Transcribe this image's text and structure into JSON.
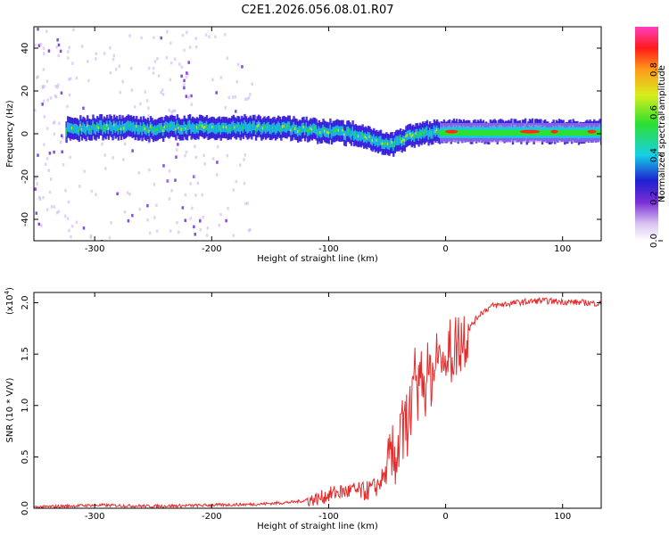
{
  "title": "C2E1.2026.056.08.01.R07",
  "colors": {
    "snr_line": "#e62a2a",
    "ridge": "#19c8d2",
    "haze": "#a678e6",
    "background": "#ffffff"
  },
  "chart_data": [
    {
      "type": "heatmap",
      "xlabel": "Height of straight line (km)",
      "ylabel": "Frequency (Hz)",
      "xlim": [
        -352,
        133
      ],
      "ylim": [
        -50,
        50
      ],
      "x_ticks": [
        -300,
        -200,
        -100,
        0,
        100
      ],
      "x_tick_labels": [
        "-300",
        "-200",
        "-100",
        "0",
        "100"
      ],
      "y_ticks": [
        -40,
        -20,
        0,
        20,
        40
      ],
      "y_tick_labels": [
        "-40",
        "-20",
        "0",
        "20",
        "40"
      ],
      "ridge_center": {
        "x": [
          -325,
          -300,
          -270,
          -250,
          -230,
          -200,
          -175,
          -150,
          -125,
          -100,
          -80,
          -65,
          -55,
          -45,
          -35,
          -20,
          0,
          20,
          60,
          100,
          133
        ],
        "y": [
          2,
          3,
          3,
          2,
          3,
          3,
          3,
          3,
          2,
          1,
          0,
          -2,
          -4,
          -5,
          -2,
          0,
          1,
          1,
          1,
          1,
          1
        ]
      },
      "haze_bands": [
        {
          "x": [
            -352,
            -320
          ],
          "intensity": 0.9
        },
        {
          "x": [
            -320,
            -240
          ],
          "intensity": 0.35
        },
        {
          "x": [
            -240,
            -215
          ],
          "intensity": 0.9
        },
        {
          "x": [
            -215,
            -165
          ],
          "intensity": 0.45
        }
      ],
      "colorbar": {
        "label": "Normalized spectral amplitude",
        "range": [
          0,
          1
        ],
        "ticks": [
          0.0,
          0.2,
          0.4,
          0.6,
          0.8
        ],
        "tick_labels": [
          "0.0",
          "0.2",
          "0.4",
          "0.6",
          "0.8"
        ]
      }
    },
    {
      "type": "line",
      "xlabel": "Height of straight line (km)",
      "ylabel": "SNR (10 * V/V)",
      "ylabel_scale": "(x10",
      "ylabel_scale_exp": "4",
      "xlim": [
        -352,
        133
      ],
      "ylim": [
        0,
        2.1
      ],
      "x_ticks": [
        -300,
        -200,
        -100,
        0,
        100
      ],
      "x_tick_labels": [
        "-300",
        "-200",
        "-100",
        "0",
        "100"
      ],
      "y_ticks": [
        0.0,
        0.5,
        1.0,
        1.5,
        2.0
      ],
      "y_tick_labels": [
        "0.0",
        "0.5",
        "1.0",
        "1.5",
        "2.0"
      ],
      "series": [
        {
          "name": "SNR",
          "x": [
            -352,
            -300,
            -250,
            -200,
            -160,
            -130,
            -110,
            -95,
            -80,
            -70,
            -60,
            -50,
            -40,
            -30,
            -20,
            -10,
            0,
            10,
            20,
            30,
            40,
            60,
            80,
            100,
            120,
            133
          ],
          "y": [
            0.01,
            0.03,
            0.02,
            0.03,
            0.04,
            0.06,
            0.09,
            0.15,
            0.17,
            0.16,
            0.2,
            0.35,
            0.6,
            0.95,
            1.2,
            1.35,
            1.45,
            1.6,
            1.75,
            1.9,
            1.97,
            2.0,
            2.02,
            2.01,
            2.0,
            1.99
          ]
        }
      ]
    }
  ]
}
